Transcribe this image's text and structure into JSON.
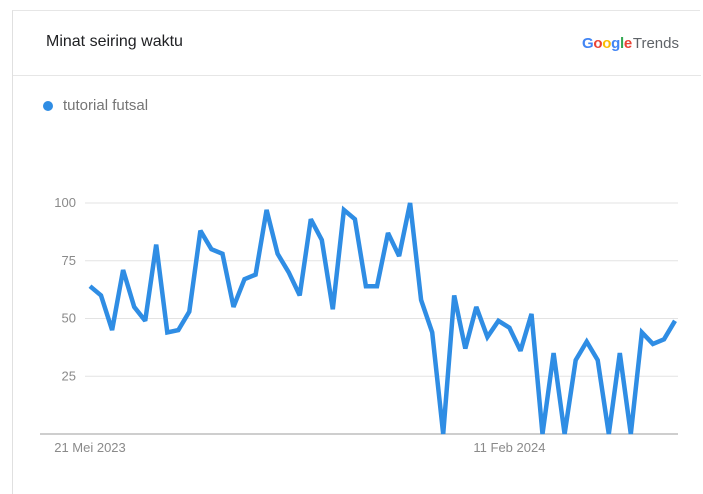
{
  "card": {
    "title": "Minat seiring waktu",
    "brand_google": "Google",
    "brand_trends": "Trends"
  },
  "colors": {
    "series": "#2f8de4",
    "grid": "#e3e3e3",
    "axis": "#9e9e9e",
    "google_blue": "#4285f4",
    "google_red": "#ea4335",
    "google_yellow": "#fbbc05",
    "google_green": "#34a853"
  },
  "chart_data": {
    "type": "line",
    "ylim": [
      0,
      100
    ],
    "yticks": [
      25,
      50,
      75,
      100
    ],
    "grid": true,
    "x_tick_labels": [
      {
        "label": "21 Mei 2023",
        "index": 0
      },
      {
        "label": "11 Feb 2024",
        "index": 38
      }
    ],
    "series": [
      {
        "name": "tutorial futsal",
        "values": [
          64,
          60,
          45,
          71,
          55,
          49,
          82,
          44,
          45,
          53,
          88,
          80,
          78,
          55,
          67,
          69,
          97,
          78,
          70,
          60,
          93,
          84,
          54,
          97,
          93,
          64,
          64,
          87,
          77,
          100,
          58,
          44,
          0,
          60,
          37,
          55,
          42,
          49,
          46,
          36,
          52,
          0,
          35,
          0,
          32,
          40,
          32,
          0,
          35,
          0,
          44,
          39,
          41,
          49
        ]
      }
    ]
  }
}
